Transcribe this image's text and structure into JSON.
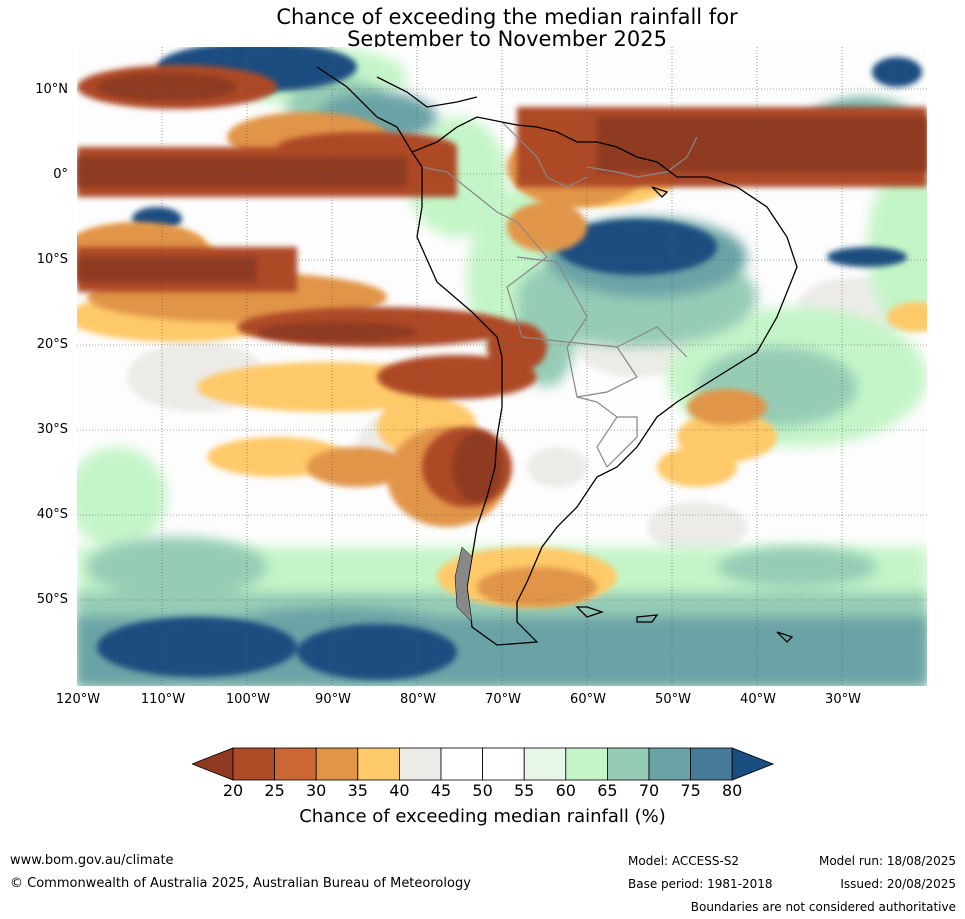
{
  "title": {
    "line1": "Chance of exceeding the median rainfall for",
    "line2": "September to November 2025"
  },
  "map": {
    "lat_labels": [
      "10°N",
      "0°",
      "10°S",
      "20°S",
      "30°S",
      "40°S",
      "50°S"
    ],
    "lon_labels": [
      "120°W",
      "110°W",
      "100°W",
      "90°W",
      "80°W",
      "70°W",
      "60°W",
      "50°W",
      "40°W",
      "30°W"
    ],
    "lon_range": [
      -120,
      -20
    ],
    "lat_range": [
      -60,
      15
    ],
    "coastline_color": "#000000",
    "border_color": "#888888",
    "gridlines": true
  },
  "colorbar": {
    "ticks": [
      "20",
      "25",
      "30",
      "35",
      "40",
      "45",
      "50",
      "55",
      "60",
      "65",
      "70",
      "75",
      "80"
    ],
    "colors": [
      "#8e3a21",
      "#ae4a26",
      "#cc6634",
      "#e19548",
      "#fec969",
      "#edebe8",
      "#ffffff",
      "#ffffff",
      "#e8f6ea",
      "#c4f5c8",
      "#96ccb6",
      "#6aa3a6",
      "#457a99",
      "#1a4e80"
    ],
    "label": "Chance of exceeding median rainfall (%)"
  },
  "footer": {
    "website": "www.bom.gov.au/climate",
    "copyright": "© Commonwealth of Australia 2025, Australian Bureau of Meteorology",
    "model": "Model: ACCESS-S2",
    "base_period": "Base period: 1981-2018",
    "model_run": "Model run: 18/08/2025",
    "issued": "Issued: 20/08/2025",
    "disclaimer": "Boundaries are not considered authoritative"
  }
}
